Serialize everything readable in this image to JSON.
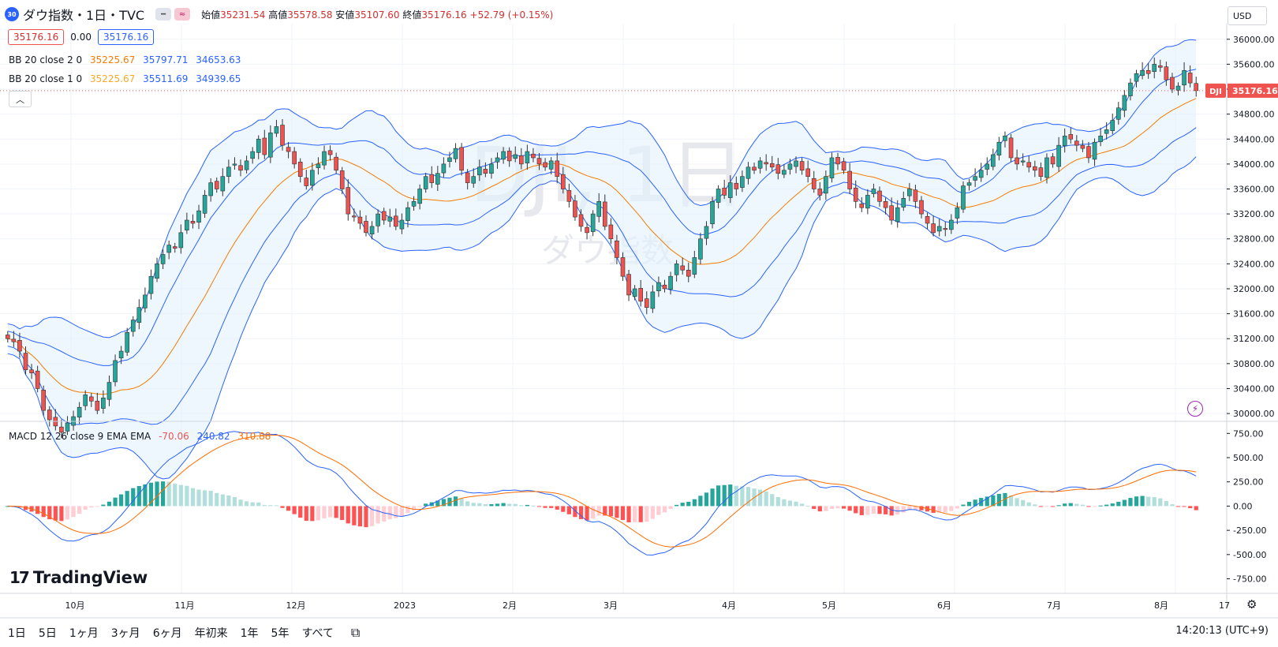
{
  "header": {
    "symbol_badge": "30",
    "title": "ダウ指数・1日・TVC",
    "toggle_1_icon": "minus-icon",
    "toggle_2_icon": "approx-icon",
    "ohlc": {
      "open_label": "始値",
      "open": "35231.54",
      "high_label": "高値",
      "high": "35578.58",
      "low_label": "安値",
      "low": "35107.60",
      "close_label": "終値",
      "close": "35176.16",
      "change": "+52.79 (+0.15%)"
    }
  },
  "price_row": {
    "bid": "35176.16",
    "spread": "0.00",
    "ask": "35176.16"
  },
  "indicators": {
    "bb2": {
      "label": "BB 20 close 2 0",
      "basis": "35225.67",
      "upper": "35797.71",
      "lower": "34653.63"
    },
    "bb1": {
      "label": "BB 20 close 1 0",
      "basis": "35225.67",
      "upper": "35511.69",
      "lower": "34939.65"
    },
    "macd": {
      "label": "MACD 12 26 close 9 EMA EMA",
      "hist": "-70.06",
      "macd": "240.82",
      "signal": "310.88"
    }
  },
  "currency_button": "USD",
  "watermark": {
    "main": "DJI, 1日",
    "sub": "ダウ指数"
  },
  "last_price_tag": {
    "symbol": "DJI",
    "price": "35176.16"
  },
  "x_axis_labels": [
    "10月",
    "11月",
    "12月",
    "2023",
    "2月",
    "3月",
    "4月",
    "5月",
    "6月",
    "7月",
    "8月",
    "17"
  ],
  "price_axis_labels": [
    "36000.00",
    "35600.00",
    "35200.00",
    "34800.00",
    "34400.00",
    "34000.00",
    "33600.00",
    "33200.00",
    "32800.00",
    "32400.00",
    "32000.00",
    "31600.00",
    "31200.00",
    "30800.00",
    "30400.00",
    "30000.00"
  ],
  "macd_axis_labels": [
    "750.00",
    "500.00",
    "250.00",
    "0.00",
    "-250.00",
    "-500.00",
    "-750.00"
  ],
  "bottom_bar": {
    "ranges": [
      "1日",
      "5日",
      "1ヶ月",
      "3ヶ月",
      "6ヶ月",
      "年初来",
      "1年",
      "5年",
      "すべて"
    ],
    "compare_icon": "date-range-icon",
    "clock": "14:20:13 (UTC+9)"
  },
  "logo": {
    "text": "TradingView"
  },
  "colors": {
    "up": "#26a69a",
    "down": "#ef5350",
    "basis": "#f57c00",
    "band": "#2962ff",
    "band_fill": "#e3f2fd",
    "macd": "#2962ff",
    "signal": "#ff6d00"
  },
  "chart_data": {
    "type": "candlestick",
    "title": "ダウ指数・1日・TVC",
    "ylim": [
      29900,
      36250
    ],
    "macd_ylim": [
      -900,
      850
    ],
    "x_axis": "2022-09 .. 2023-08",
    "closes": [
      31200,
      31150,
      31000,
      30700,
      30650,
      30400,
      30050,
      29900,
      29800,
      29700,
      29850,
      29950,
      30100,
      30300,
      30200,
      30050,
      30250,
      30500,
      30850,
      31000,
      31300,
      31500,
      31700,
      31900,
      32200,
      32400,
      32550,
      32700,
      32650,
      32900,
      33100,
      33050,
      33250,
      33500,
      33700,
      33600,
      33800,
      33950,
      34000,
      33900,
      34050,
      34200,
      34400,
      34150,
      34500,
      34600,
      34300,
      34200,
      34000,
      33800,
      33650,
      33900,
      34000,
      34200,
      34150,
      33900,
      33600,
      33200,
      33150,
      33050,
      32900,
      33000,
      33200,
      33100,
      33150,
      33000,
      33100,
      33300,
      33400,
      33600,
      33800,
      33700,
      33850,
      34000,
      34100,
      34250,
      33900,
      33700,
      33800,
      33950,
      33850,
      34000,
      34100,
      34200,
      34050,
      34150,
      34000,
      34200,
      34100,
      34000,
      33950,
      34050,
      33800,
      33600,
      33400,
      33150,
      33000,
      32900,
      33200,
      33400,
      33000,
      32800,
      32500,
      32200,
      31900,
      32000,
      31800,
      31700,
      31950,
      32100,
      32000,
      32200,
      32400,
      32300,
      32200,
      32500,
      32800,
      33000,
      33400,
      33600,
      33500,
      33700,
      33600,
      33800,
      33950,
      33900,
      34050,
      34000,
      33950,
      33850,
      33900,
      34000,
      34050,
      33900,
      33800,
      33600,
      33500,
      33800,
      34100,
      34000,
      33900,
      33600,
      33400,
      33300,
      33500,
      33600,
      33400,
      33300,
      33100,
      33300,
      33450,
      33600,
      33400,
      33200,
      33050,
      32900,
      33000,
      32950,
      33100,
      33300,
      33650,
      33700,
      33800,
      33900,
      34000,
      34150,
      34350,
      34450,
      34100,
      34000,
      34050,
      33950,
      33900,
      33800,
      34100,
      34000,
      34300,
      34450,
      34400,
      34300,
      34250,
      34100,
      34350,
      34450,
      34550,
      34700,
      34900,
      35100,
      35300,
      35450,
      35500,
      35450,
      35600,
      35550,
      35350,
      35200,
      35250,
      35500,
      35300,
      35176
    ]
  }
}
